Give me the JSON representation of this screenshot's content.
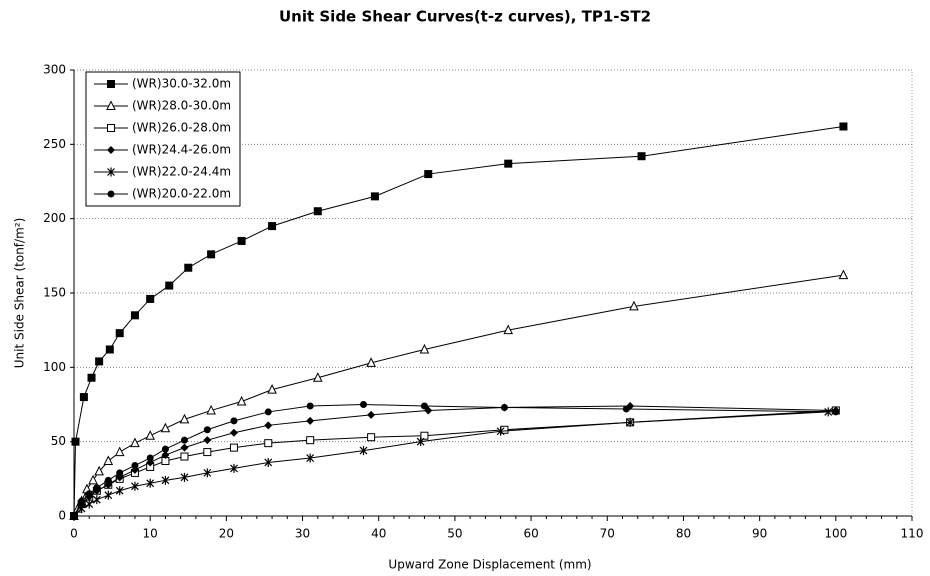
{
  "chart_data": {
    "type": "line",
    "title": "Unit Side Shear Curves(t-z curves), TP1-ST2",
    "xlabel": "Upward Zone Displacement (mm)",
    "ylabel": "Unit Side Shear (tonf/m²)",
    "xlim": [
      0,
      110
    ],
    "xticks": [
      0,
      10,
      20,
      30,
      40,
      50,
      60,
      70,
      80,
      90,
      100,
      110
    ],
    "ylim": [
      0,
      300
    ],
    "yticks": [
      0,
      50,
      100,
      150,
      200,
      250,
      300
    ],
    "grid": true,
    "legend": "upper left",
    "series": [
      {
        "name": "(WR)30.0-32.0m",
        "color": "#000000",
        "marker": "square-filled",
        "x": [
          0,
          0.2,
          1.3,
          2.3,
          3.3,
          4.7,
          6,
          8,
          10,
          12.5,
          15,
          18,
          22,
          26,
          32,
          39.5,
          46.5,
          57,
          74.5,
          101
        ],
        "values": [
          0,
          50,
          80,
          93,
          104,
          112,
          123,
          135,
          146,
          155,
          167,
          176,
          185,
          195,
          205,
          215,
          230,
          237,
          242,
          262
        ]
      },
      {
        "name": "(WR)28.0-30.0m",
        "color": "#000000",
        "marker": "triangle-open",
        "x": [
          0,
          0.5,
          1,
          1.7,
          2.5,
          3.3,
          4.5,
          6,
          8,
          10,
          12,
          14.5,
          18,
          22,
          26,
          32,
          39,
          46,
          57,
          73.5,
          101
        ],
        "values": [
          0,
          5,
          10,
          18,
          24,
          30,
          37,
          43,
          49,
          54,
          59,
          65,
          71,
          77,
          85,
          93,
          103,
          112,
          125,
          141,
          162
        ]
      },
      {
        "name": "(WR)26.0-28.0m",
        "color": "#000000",
        "marker": "square-open",
        "x": [
          0,
          1,
          2,
          3,
          4.5,
          6,
          8,
          10,
          12,
          14.5,
          17.5,
          21,
          25.5,
          31,
          39,
          46,
          56.5,
          73,
          100
        ],
        "values": [
          0,
          8,
          13,
          17,
          21,
          25,
          29,
          33,
          37,
          40,
          43,
          46,
          49,
          51,
          53,
          54,
          58,
          63,
          71
        ]
      },
      {
        "name": "(WR)24.4-26.0m",
        "color": "#000000",
        "marker": "diamond-filled",
        "x": [
          0,
          1,
          2,
          3,
          4.5,
          6,
          8,
          10,
          12,
          14.5,
          17.5,
          21,
          25.5,
          31,
          39,
          46.5,
          56.5,
          73,
          100
        ],
        "values": [
          0,
          8,
          13,
          17,
          21,
          26,
          31,
          36,
          41,
          46,
          51,
          56,
          61,
          64,
          68,
          71,
          73,
          74,
          71
        ]
      },
      {
        "name": "(WR)22.0-24.4m",
        "color": "#000000",
        "marker": "asterisk",
        "x": [
          0,
          1,
          2,
          3,
          4.5,
          6,
          8,
          10,
          12,
          14.5,
          17.5,
          21,
          25.5,
          31,
          38,
          45.5,
          56,
          73,
          99
        ],
        "values": [
          0,
          5,
          8,
          11,
          14,
          17,
          20,
          22,
          24,
          26,
          29,
          32,
          36,
          39,
          44,
          50,
          57,
          63,
          70
        ]
      },
      {
        "name": "(WR)20.0-22.0m",
        "color": "#000000",
        "marker": "circle-filled",
        "x": [
          0,
          1,
          2,
          3,
          4.5,
          6,
          8,
          10,
          12,
          14.5,
          17.5,
          21,
          25.5,
          31,
          38,
          46,
          56.5,
          72.5,
          100
        ],
        "values": [
          0,
          10,
          15,
          19,
          24,
          29,
          34,
          39,
          45,
          51,
          58,
          64,
          70,
          74,
          75,
          74,
          73,
          72,
          70
        ]
      }
    ]
  }
}
